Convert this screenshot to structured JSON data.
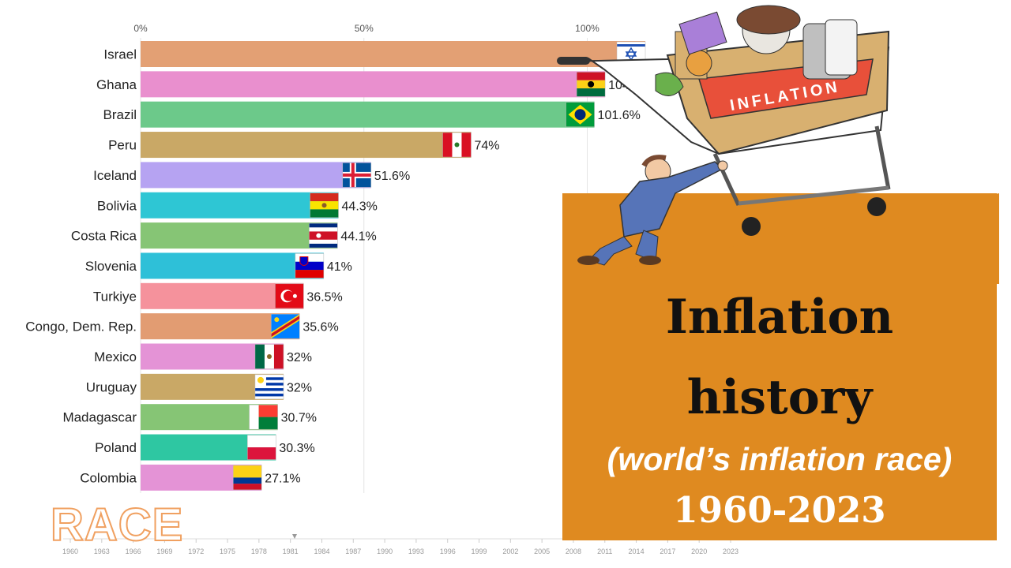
{
  "title": {
    "line1": "Inflation",
    "line2": "history",
    "subtitle": "(world’s inflation race)",
    "years": "1960-2023"
  },
  "race_word": "RACE",
  "cart_label": "INFLATION",
  "colors": {
    "panel": "#df8a20",
    "cart_banner": "#e8503a"
  },
  "chart_data": {
    "type": "bar",
    "orientation": "horizontal",
    "x_ticks": [
      {
        "value": 0,
        "label": "0%"
      },
      {
        "value": 50,
        "label": "50%"
      },
      {
        "value": 100,
        "label": "100%"
      }
    ],
    "xlim": [
      0,
      100
    ],
    "grid": true,
    "categories": [
      "Israel",
      "Ghana",
      "Brazil",
      "Peru",
      "Iceland",
      "Bolivia",
      "Costa Rica",
      "Slovenia",
      "Turkiye",
      "Congo, Dem. Rep.",
      "Mexico",
      "Uruguay",
      "Madagascar",
      "Poland",
      "Colombia"
    ],
    "values": [
      113,
      104,
      101.6,
      74,
      51.6,
      44.3,
      44.1,
      41,
      36.5,
      35.6,
      32,
      32,
      30.7,
      30.3,
      27.1
    ],
    "value_labels": [
      "",
      "104%",
      "101.6%",
      "74%",
      "51.6%",
      "44.3%",
      "44.1%",
      "41%",
      "36.5%",
      "35.6%",
      "32%",
      "32%",
      "30.7%",
      "30.3%",
      "27.1%"
    ],
    "bar_colors": [
      "#e3a074",
      "#e98fce",
      "#6cc98a",
      "#c9a866",
      "#b6a3f2",
      "#2ec6d4",
      "#86c575",
      "#2ec0d8",
      "#f5929c",
      "#e29c72",
      "#e493d6",
      "#c9a866",
      "#86c575",
      "#2ec7a2",
      "#e493d6"
    ],
    "timeline": [
      "1960",
      "1963",
      "1966",
      "1969",
      "1972",
      "1975",
      "1978",
      "1981",
      "1984",
      "1987",
      "1990",
      "1993",
      "1996",
      "1999",
      "2002",
      "2005",
      "2008",
      "2011",
      "2014",
      "2017",
      "2020",
      "2023"
    ]
  }
}
